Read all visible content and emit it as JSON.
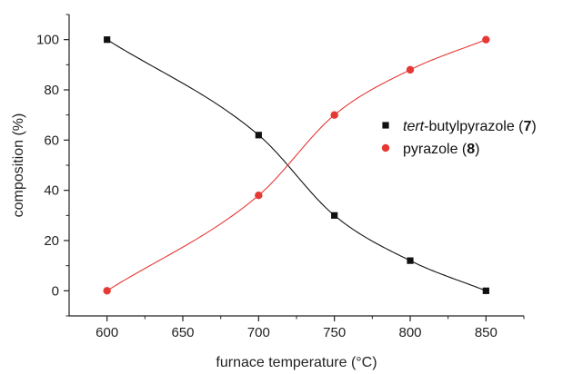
{
  "chart_data": {
    "type": "scatter",
    "xlabel": "furnace temperature (°C)",
    "ylabel": "composition (%)",
    "xlim": [
      575,
      875
    ],
    "ylim": [
      -10,
      110
    ],
    "xticks": [
      600,
      650,
      700,
      750,
      800,
      850
    ],
    "yticks": [
      0,
      20,
      40,
      60,
      80,
      100
    ],
    "grid": false,
    "legend_position": "right",
    "series": [
      {
        "name_prefix": "tert",
        "name_main": "-butylpyrazole (",
        "name_bold": "7",
        "name_suffix": ")",
        "marker": "square",
        "color": "#111111",
        "fit_color": "#111111",
        "x": [
          600,
          700,
          750,
          800,
          850
        ],
        "y": [
          100,
          62,
          30,
          12,
          0
        ]
      },
      {
        "name_prefix": "",
        "name_main": "pyrazole (",
        "name_bold": "8",
        "name_suffix": ")",
        "marker": "circle",
        "color": "#e53935",
        "fit_color": "#e53935",
        "x": [
          600,
          700,
          750,
          800,
          850
        ],
        "y": [
          0,
          38,
          70,
          88,
          100
        ]
      }
    ]
  }
}
